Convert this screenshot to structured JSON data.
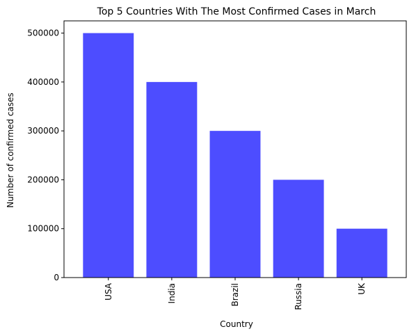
{
  "chart_data": {
    "type": "bar",
    "title": "Top 5 Countries With The Most Confirmed Cases in March",
    "xlabel": "Country",
    "ylabel": "Number of confirmed cases",
    "categories": [
      "USA",
      "India",
      "Brazil",
      "Russia",
      "UK"
    ],
    "values": [
      500000,
      400000,
      300000,
      200000,
      100000
    ],
    "yticks": [
      0,
      100000,
      200000,
      300000,
      400000,
      500000
    ],
    "ytick_labels": [
      "0",
      "100000",
      "200000",
      "300000",
      "400000",
      "500000"
    ],
    "ylim": [
      0,
      525000
    ],
    "bar_color": "#4d4dff",
    "grid": false,
    "x_tick_rotation": "vertical"
  }
}
